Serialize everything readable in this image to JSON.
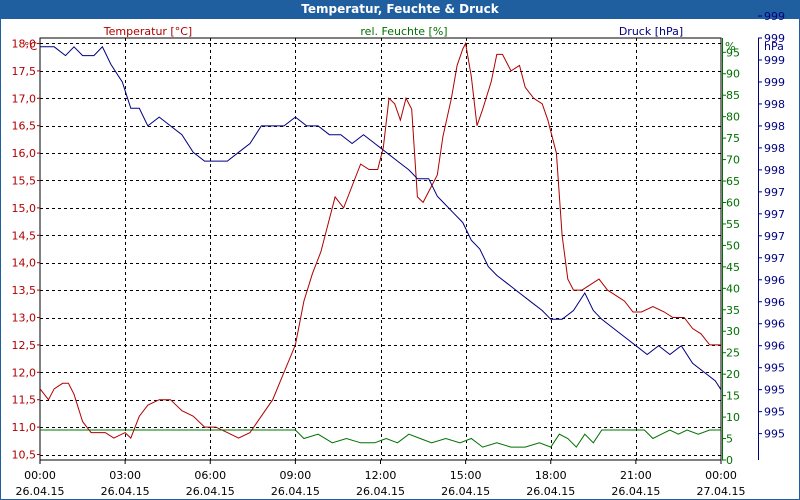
{
  "window": {
    "title": "Temperatur, Feuchte & Druck"
  },
  "colors": {
    "temperature": "#b00000",
    "humidity": "#007000",
    "pressure": "#000080",
    "title_bg": "#1f5f9f",
    "grid": "#000000"
  },
  "chart_data": {
    "type": "line",
    "title": "Temperatur, Feuchte & Druck",
    "grid": true,
    "x_range": [
      0,
      24
    ],
    "x_ticks": [
      {
        "x": 0,
        "time": "00:00",
        "date": "26.04.15"
      },
      {
        "x": 3,
        "time": "03:00",
        "date": "26.04.15"
      },
      {
        "x": 6,
        "time": "06:00",
        "date": "26.04.15"
      },
      {
        "x": 9,
        "time": "09:00",
        "date": "26.04.15"
      },
      {
        "x": 12,
        "time": "12:00",
        "date": "26.04.15"
      },
      {
        "x": 15,
        "time": "15:00",
        "date": "26.04.15"
      },
      {
        "x": 18,
        "time": "18:00",
        "date": "26.04.15"
      },
      {
        "x": 21,
        "time": "21:00",
        "date": "26.04.15"
      },
      {
        "x": 24,
        "time": "00:00",
        "date": "27.04.15"
      }
    ],
    "axes": {
      "temperature": {
        "label": "Temperatur [°C]",
        "unit": "°C",
        "range": [
          10.4,
          18.1
        ],
        "ticks": [
          {
            "v": 10.5,
            "t": "10,5"
          },
          {
            "v": 11.0,
            "t": "11,0"
          },
          {
            "v": 11.5,
            "t": "11,5"
          },
          {
            "v": 12.0,
            "t": "12,0"
          },
          {
            "v": 12.5,
            "t": "12,5"
          },
          {
            "v": 13.0,
            "t": "13,0"
          },
          {
            "v": 13.5,
            "t": "13,5"
          },
          {
            "v": 14.0,
            "t": "14,0"
          },
          {
            "v": 14.5,
            "t": "14,5"
          },
          {
            "v": 15.0,
            "t": "15,0"
          },
          {
            "v": 15.5,
            "t": "15,5"
          },
          {
            "v": 16.0,
            "t": "16,0"
          },
          {
            "v": 16.5,
            "t": "16,5"
          },
          {
            "v": 17.0,
            "t": "17,0"
          },
          {
            "v": 17.5,
            "t": "17,5"
          },
          {
            "v": 18.0,
            "t": "18,0"
          }
        ]
      },
      "humidity": {
        "label": "rel. Feuchte [%]",
        "unit": "%",
        "range": [
          0,
          98.33
        ],
        "ticks": [
          {
            "v": 0,
            "t": "0"
          },
          {
            "v": 5,
            "t": "5"
          },
          {
            "v": 10,
            "t": "10"
          },
          {
            "v": 15,
            "t": "15"
          },
          {
            "v": 20,
            "t": "20"
          },
          {
            "v": 25,
            "t": "25"
          },
          {
            "v": 30,
            "t": "30"
          },
          {
            "v": 35,
            "t": "35"
          },
          {
            "v": 40,
            "t": "40"
          },
          {
            "v": 45,
            "t": "45"
          },
          {
            "v": 50,
            "t": "50"
          },
          {
            "v": 55,
            "t": "55"
          },
          {
            "v": 60,
            "t": "60"
          },
          {
            "v": 65,
            "t": "65"
          },
          {
            "v": 70,
            "t": "70"
          },
          {
            "v": 75,
            "t": "75"
          },
          {
            "v": 80,
            "t": "80"
          },
          {
            "v": 85,
            "t": "85"
          },
          {
            "v": 90,
            "t": "90"
          },
          {
            "v": 95,
            "t": "95"
          }
        ]
      },
      "pressure": {
        "label": "Druck [hPa]",
        "unit": "hPa",
        "range": [
          994.7,
          999.5
        ],
        "ticks": [
          {
            "v": 995.0,
            "t": "995"
          },
          {
            "v": 995.25,
            "t": "995"
          },
          {
            "v": 995.5,
            "t": "995"
          },
          {
            "v": 995.75,
            "t": "995"
          },
          {
            "v": 996.0,
            "t": "996"
          },
          {
            "v": 996.25,
            "t": "996"
          },
          {
            "v": 996.5,
            "t": "996"
          },
          {
            "v": 996.75,
            "t": "996"
          },
          {
            "v": 997.0,
            "t": "997"
          },
          {
            "v": 997.25,
            "t": "997"
          },
          {
            "v": 997.5,
            "t": "997"
          },
          {
            "v": 997.75,
            "t": "997"
          },
          {
            "v": 998.0,
            "t": "998"
          },
          {
            "v": 998.25,
            "t": "998"
          },
          {
            "v": 998.5,
            "t": "998"
          },
          {
            "v": 998.75,
            "t": "998"
          },
          {
            "v": 999.0,
            "t": "999"
          },
          {
            "v": 999.25,
            "t": "999"
          },
          {
            "v": 999.5,
            "t": "999"
          },
          {
            "v": 999.75,
            "t": "999"
          }
        ]
      }
    },
    "series": [
      {
        "name": "Temperatur [°C]",
        "axis": "temperature",
        "color": "#b00000",
        "points": [
          [
            0.0,
            11.7
          ],
          [
            0.3,
            11.5
          ],
          [
            0.5,
            11.7
          ],
          [
            0.8,
            11.8
          ],
          [
            1.0,
            11.8
          ],
          [
            1.2,
            11.6
          ],
          [
            1.5,
            11.1
          ],
          [
            1.8,
            10.9
          ],
          [
            2.3,
            10.9
          ],
          [
            2.6,
            10.8
          ],
          [
            3.0,
            10.9
          ],
          [
            3.2,
            10.8
          ],
          [
            3.5,
            11.2
          ],
          [
            3.8,
            11.4
          ],
          [
            4.2,
            11.5
          ],
          [
            4.6,
            11.5
          ],
          [
            5.0,
            11.3
          ],
          [
            5.4,
            11.2
          ],
          [
            5.8,
            11.0
          ],
          [
            6.2,
            11.0
          ],
          [
            6.6,
            10.9
          ],
          [
            7.0,
            10.8
          ],
          [
            7.4,
            10.9
          ],
          [
            7.8,
            11.2
          ],
          [
            8.2,
            11.5
          ],
          [
            8.6,
            12.0
          ],
          [
            9.0,
            12.5
          ],
          [
            9.3,
            13.3
          ],
          [
            9.6,
            13.8
          ],
          [
            9.9,
            14.2
          ],
          [
            10.2,
            14.8
          ],
          [
            10.4,
            15.2
          ],
          [
            10.7,
            15.0
          ],
          [
            11.0,
            15.4
          ],
          [
            11.3,
            15.8
          ],
          [
            11.6,
            15.7
          ],
          [
            11.9,
            15.7
          ],
          [
            12.1,
            16.1
          ],
          [
            12.3,
            17.0
          ],
          [
            12.5,
            16.9
          ],
          [
            12.7,
            16.6
          ],
          [
            12.9,
            17.0
          ],
          [
            13.1,
            16.8
          ],
          [
            13.3,
            15.2
          ],
          [
            13.5,
            15.1
          ],
          [
            13.8,
            15.4
          ],
          [
            14.0,
            15.6
          ],
          [
            14.2,
            16.3
          ],
          [
            14.5,
            17.0
          ],
          [
            14.7,
            17.6
          ],
          [
            14.9,
            17.9
          ],
          [
            15.0,
            18.0
          ],
          [
            15.2,
            17.4
          ],
          [
            15.4,
            16.5
          ],
          [
            15.6,
            16.8
          ],
          [
            15.9,
            17.3
          ],
          [
            16.1,
            17.8
          ],
          [
            16.3,
            17.8
          ],
          [
            16.6,
            17.5
          ],
          [
            16.9,
            17.6
          ],
          [
            17.1,
            17.2
          ],
          [
            17.4,
            17.0
          ],
          [
            17.7,
            16.9
          ],
          [
            17.9,
            16.6
          ],
          [
            18.2,
            16.0
          ],
          [
            18.4,
            14.5
          ],
          [
            18.6,
            13.7
          ],
          [
            18.8,
            13.5
          ],
          [
            19.1,
            13.5
          ],
          [
            19.4,
            13.6
          ],
          [
            19.7,
            13.7
          ],
          [
            20.0,
            13.5
          ],
          [
            20.3,
            13.4
          ],
          [
            20.6,
            13.3
          ],
          [
            20.9,
            13.1
          ],
          [
            21.2,
            13.1
          ],
          [
            21.6,
            13.2
          ],
          [
            22.0,
            13.1
          ],
          [
            22.3,
            13.0
          ],
          [
            22.7,
            13.0
          ],
          [
            23.0,
            12.8
          ],
          [
            23.3,
            12.7
          ],
          [
            23.6,
            12.5
          ],
          [
            24.0,
            12.5
          ]
        ]
      },
      {
        "name": "rel. Feuchte [%]",
        "axis": "humidity",
        "color": "#007000",
        "points": [
          [
            0.0,
            7
          ],
          [
            2.0,
            7
          ],
          [
            3.2,
            7
          ],
          [
            4.0,
            7
          ],
          [
            6.0,
            7
          ],
          [
            8.5,
            7
          ],
          [
            9.0,
            7
          ],
          [
            9.3,
            5
          ],
          [
            9.8,
            6
          ],
          [
            10.3,
            4
          ],
          [
            10.8,
            5
          ],
          [
            11.3,
            4
          ],
          [
            11.8,
            4
          ],
          [
            12.2,
            5
          ],
          [
            12.6,
            4
          ],
          [
            13.0,
            6
          ],
          [
            13.4,
            5
          ],
          [
            13.8,
            4
          ],
          [
            14.3,
            5
          ],
          [
            14.8,
            4
          ],
          [
            15.2,
            5
          ],
          [
            15.6,
            3
          ],
          [
            16.1,
            4
          ],
          [
            16.6,
            3
          ],
          [
            17.1,
            3
          ],
          [
            17.6,
            4
          ],
          [
            18.0,
            3
          ],
          [
            18.3,
            6
          ],
          [
            18.6,
            5
          ],
          [
            18.9,
            3
          ],
          [
            19.2,
            6
          ],
          [
            19.5,
            4
          ],
          [
            19.8,
            7
          ],
          [
            20.3,
            7
          ],
          [
            21.0,
            7
          ],
          [
            21.3,
            7
          ],
          [
            21.6,
            5
          ],
          [
            21.9,
            6
          ],
          [
            22.2,
            7
          ],
          [
            22.5,
            6
          ],
          [
            22.8,
            7
          ],
          [
            23.2,
            6
          ],
          [
            23.6,
            7
          ],
          [
            24.0,
            7
          ]
        ]
      },
      {
        "name": "Druck [hPa]",
        "axis": "pressure",
        "color": "#000080",
        "points": [
          [
            0.0,
            999.4
          ],
          [
            0.5,
            999.4
          ],
          [
            0.9,
            999.3
          ],
          [
            1.2,
            999.4
          ],
          [
            1.5,
            999.3
          ],
          [
            1.9,
            999.3
          ],
          [
            2.2,
            999.4
          ],
          [
            2.5,
            999.2
          ],
          [
            2.9,
            999.0
          ],
          [
            3.2,
            998.7
          ],
          [
            3.5,
            998.7
          ],
          [
            3.8,
            998.5
          ],
          [
            4.2,
            998.6
          ],
          [
            4.6,
            998.5
          ],
          [
            5.0,
            998.4
          ],
          [
            5.4,
            998.2
          ],
          [
            5.8,
            998.1
          ],
          [
            6.2,
            998.1
          ],
          [
            6.6,
            998.1
          ],
          [
            7.0,
            998.2
          ],
          [
            7.4,
            998.3
          ],
          [
            7.8,
            998.5
          ],
          [
            8.2,
            998.5
          ],
          [
            8.6,
            998.5
          ],
          [
            9.0,
            998.6
          ],
          [
            9.4,
            998.5
          ],
          [
            9.8,
            998.5
          ],
          [
            10.2,
            998.4
          ],
          [
            10.6,
            998.4
          ],
          [
            11.0,
            998.3
          ],
          [
            11.4,
            998.4
          ],
          [
            11.8,
            998.3
          ],
          [
            12.2,
            998.2
          ],
          [
            12.6,
            998.1
          ],
          [
            13.0,
            998.0
          ],
          [
            13.3,
            997.9
          ],
          [
            13.7,
            997.9
          ],
          [
            14.0,
            997.7
          ],
          [
            14.3,
            997.6
          ],
          [
            14.6,
            997.5
          ],
          [
            14.9,
            997.4
          ],
          [
            15.2,
            997.2
          ],
          [
            15.5,
            997.1
          ],
          [
            15.8,
            996.9
          ],
          [
            16.1,
            996.8
          ],
          [
            16.5,
            996.7
          ],
          [
            16.9,
            996.6
          ],
          [
            17.3,
            996.5
          ],
          [
            17.7,
            996.4
          ],
          [
            18.0,
            996.3
          ],
          [
            18.4,
            996.3
          ],
          [
            18.8,
            996.4
          ],
          [
            19.2,
            996.6
          ],
          [
            19.5,
            996.4
          ],
          [
            19.8,
            996.3
          ],
          [
            20.2,
            996.2
          ],
          [
            20.6,
            996.1
          ],
          [
            21.0,
            996.0
          ],
          [
            21.4,
            995.9
          ],
          [
            21.8,
            996.0
          ],
          [
            22.2,
            995.9
          ],
          [
            22.6,
            996.0
          ],
          [
            23.0,
            995.8
          ],
          [
            23.4,
            995.7
          ],
          [
            23.8,
            995.6
          ],
          [
            24.0,
            995.5
          ]
        ]
      }
    ]
  }
}
